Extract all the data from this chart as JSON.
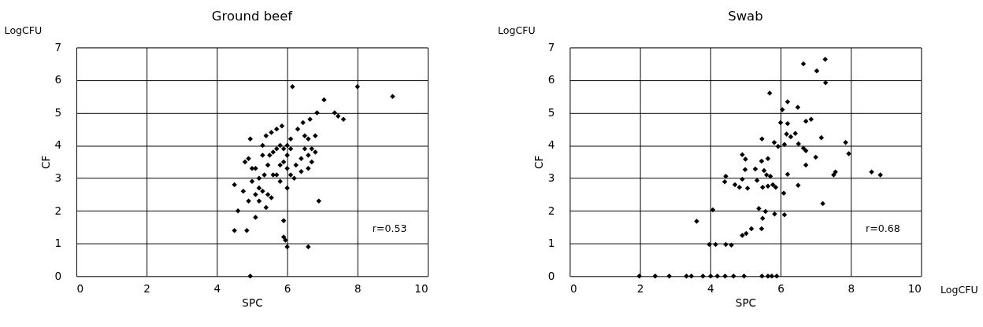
{
  "chart_data": [
    {
      "type": "scatter",
      "title": "Ground beef",
      "xlabel": "SPC",
      "ylabel": "CF",
      "annotations": [
        "LogCFU",
        "r=0.53"
      ],
      "xlim": [
        0,
        10
      ],
      "ylim": [
        0,
        7
      ],
      "xticks": [
        0,
        2,
        4,
        6,
        8,
        10
      ],
      "yticks": [
        0,
        1,
        2,
        3,
        4,
        5,
        6,
        7
      ],
      "grid": true,
      "marker": "diamond",
      "series": [
        {
          "color": "#000000",
          "x": [
            4.95,
            4.5,
            4.85,
            6.0,
            6.6,
            5.9,
            5.95,
            5.9,
            6.0,
            6.9,
            4.5,
            4.6,
            4.75,
            5.1,
            5.4,
            5.55,
            5.2,
            5.3,
            5.45,
            5.1,
            4.9,
            4.9,
            5.0,
            4.8,
            5.1,
            5.2,
            5.35,
            5.45,
            5.6,
            5.7,
            5.8,
            5.9,
            6.0,
            6.1,
            6.25,
            6.4,
            6.5,
            6.6,
            6.7,
            6.8,
            6.6,
            6.5,
            6.3,
            6.45,
            6.65,
            6.85,
            7.05,
            7.35,
            7.6,
            7.45,
            8.0,
            9.0,
            6.15,
            4.95,
            5.3,
            5.4,
            5.55,
            5.7,
            5.85,
            5.6,
            5.7,
            5.8,
            5.9,
            6.0,
            6.0,
            6.1,
            6.1,
            5.5,
            5.3,
            6.4,
            6.6,
            6.7,
            6.8,
            5.0,
            5.2,
            5.8,
            6.2
          ],
          "values": [
            0,
            1.4,
            1.4,
            0.9,
            0.9,
            1.2,
            1.1,
            1.7,
            2.7,
            2.3,
            2.8,
            2.0,
            2.6,
            1.8,
            2.1,
            2.4,
            2.3,
            2.6,
            2.5,
            2.5,
            2.3,
            3.6,
            3.3,
            3.5,
            3.3,
            3.0,
            3.1,
            3.4,
            3.1,
            3.1,
            3.4,
            3.5,
            3.3,
            3.1,
            3.4,
            3.6,
            3.9,
            3.7,
            3.5,
            3.8,
            4.2,
            4.3,
            4.5,
            4.7,
            4.8,
            5.0,
            5.4,
            5.0,
            4.8,
            4.9,
            5.8,
            5.5,
            5.8,
            4.2,
            4.0,
            4.3,
            4.4,
            4.5,
            4.6,
            3.8,
            3.9,
            4.0,
            3.9,
            4.0,
            3.7,
            3.9,
            4.2,
            3.7,
            3.7,
            3.2,
            3.3,
            3.9,
            4.3,
            2.9,
            2.7,
            2.9,
            3.0
          ]
        }
      ]
    },
    {
      "type": "scatter",
      "title": "Swab",
      "xlabel": "SPC",
      "ylabel": "CF",
      "annotations": [
        "LogCFU",
        "r=0.68",
        "LogCFU"
      ],
      "xlim": [
        0,
        10
      ],
      "ylim": [
        0,
        7
      ],
      "xticks": [
        0,
        2,
        4,
        6,
        8,
        10
      ],
      "yticks": [
        0,
        1,
        2,
        3,
        4,
        5,
        6,
        7
      ],
      "grid": true,
      "marker": "diamond",
      "series": [
        {
          "color": "#000000",
          "x": [
            6.65,
            7.27,
            7.03,
            7.28,
            5.69,
            6.2,
            6.05,
            6.49,
            6.0,
            6.2,
            6.72,
            6.87,
            6.17,
            6.42,
            6.29,
            5.47,
            5.82,
            5.93,
            6.11,
            6.51,
            6.65,
            6.72,
            7.16,
            7.85,
            7.94,
            7.0,
            6.72,
            7.56,
            7.51,
            8.59,
            8.84,
            6.2,
            6.5,
            6.09,
            7.2,
            4.91,
            5.0,
            4.99,
            5.28,
            5.46,
            5.64,
            5.53,
            5.6,
            5.71,
            5.33,
            4.91,
            4.44,
            4.41,
            4.7,
            4.83,
            5.06,
            5.49,
            5.64,
            5.78,
            5.86,
            5.38,
            5.57,
            5.49,
            5.83,
            6.11,
            4.07,
            3.61,
            4.91,
            5.02,
            5.17,
            5.46,
            3.97,
            4.15,
            4.44,
            4.6,
            1.98,
            2.43,
            2.83,
            3.32,
            3.46,
            3.79,
            4.01,
            4.2,
            4.42,
            4.66,
            4.96,
            5.47,
            5.64,
            5.75,
            5.89
          ],
          "values": [
            6.5,
            6.64,
            6.28,
            5.92,
            5.6,
            5.34,
            5.1,
            5.17,
            4.7,
            4.67,
            4.74,
            4.8,
            4.35,
            4.37,
            4.27,
            4.2,
            4.09,
            3.97,
            4.03,
            4.05,
            3.92,
            3.84,
            4.24,
            4.09,
            3.75,
            3.64,
            3.4,
            3.19,
            3.1,
            3.19,
            3.1,
            3.12,
            2.78,
            2.54,
            2.22,
            3.72,
            3.58,
            3.26,
            3.28,
            3.52,
            3.6,
            3.23,
            3.1,
            3.06,
            2.93,
            2.97,
            3.06,
            2.89,
            2.8,
            2.72,
            2.69,
            2.72,
            2.76,
            2.8,
            2.72,
            2.07,
            1.98,
            1.77,
            1.9,
            1.88,
            2.03,
            1.68,
            1.25,
            1.31,
            1.45,
            1.45,
            0.97,
            0.97,
            0.97,
            0.95,
            0,
            0,
            0,
            0,
            0,
            0,
            0,
            0,
            0,
            0,
            0,
            0,
            0,
            0,
            0
          ]
        }
      ]
    }
  ]
}
